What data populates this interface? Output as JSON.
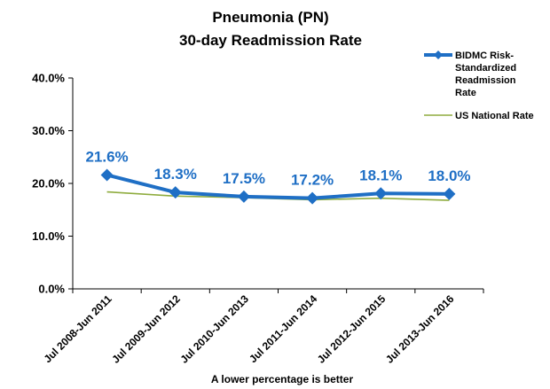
{
  "chart_data": {
    "type": "line",
    "title_line1": "Pneumonia (PN)",
    "title_line2": "30-day Readmission Rate",
    "categories": [
      "Jul 2008-Jun 2011",
      "Jul 2009-Jun 2012",
      "Jul 2010-Jun 2013",
      "Jul 2011-Jun 2014",
      "Jul 2012-Jun 2015",
      "Jul 2013-Jun 2016"
    ],
    "series": [
      {
        "name_lines": [
          "BIDMC Risk-",
          "Standardized",
          "Readmission",
          "Rate"
        ],
        "values": [
          21.6,
          18.3,
          17.5,
          17.2,
          18.1,
          18.0
        ],
        "labels": [
          "21.6%",
          "18.3%",
          "17.5%",
          "17.2%",
          "18.1%",
          "18.0%"
        ],
        "color": "#1f6fc5",
        "marker": "diamond"
      },
      {
        "name_lines": [
          "US National Rate"
        ],
        "values": [
          18.4,
          17.6,
          17.3,
          16.9,
          17.2,
          16.8
        ],
        "color": "#8fac3f"
      }
    ],
    "yticks": [
      "0.0%",
      "10.0%",
      "20.0%",
      "30.0%",
      "40.0%"
    ],
    "ylim": [
      0,
      40
    ],
    "grid": false,
    "legend_position": "top-right",
    "note": "A  lower percentage is better"
  }
}
